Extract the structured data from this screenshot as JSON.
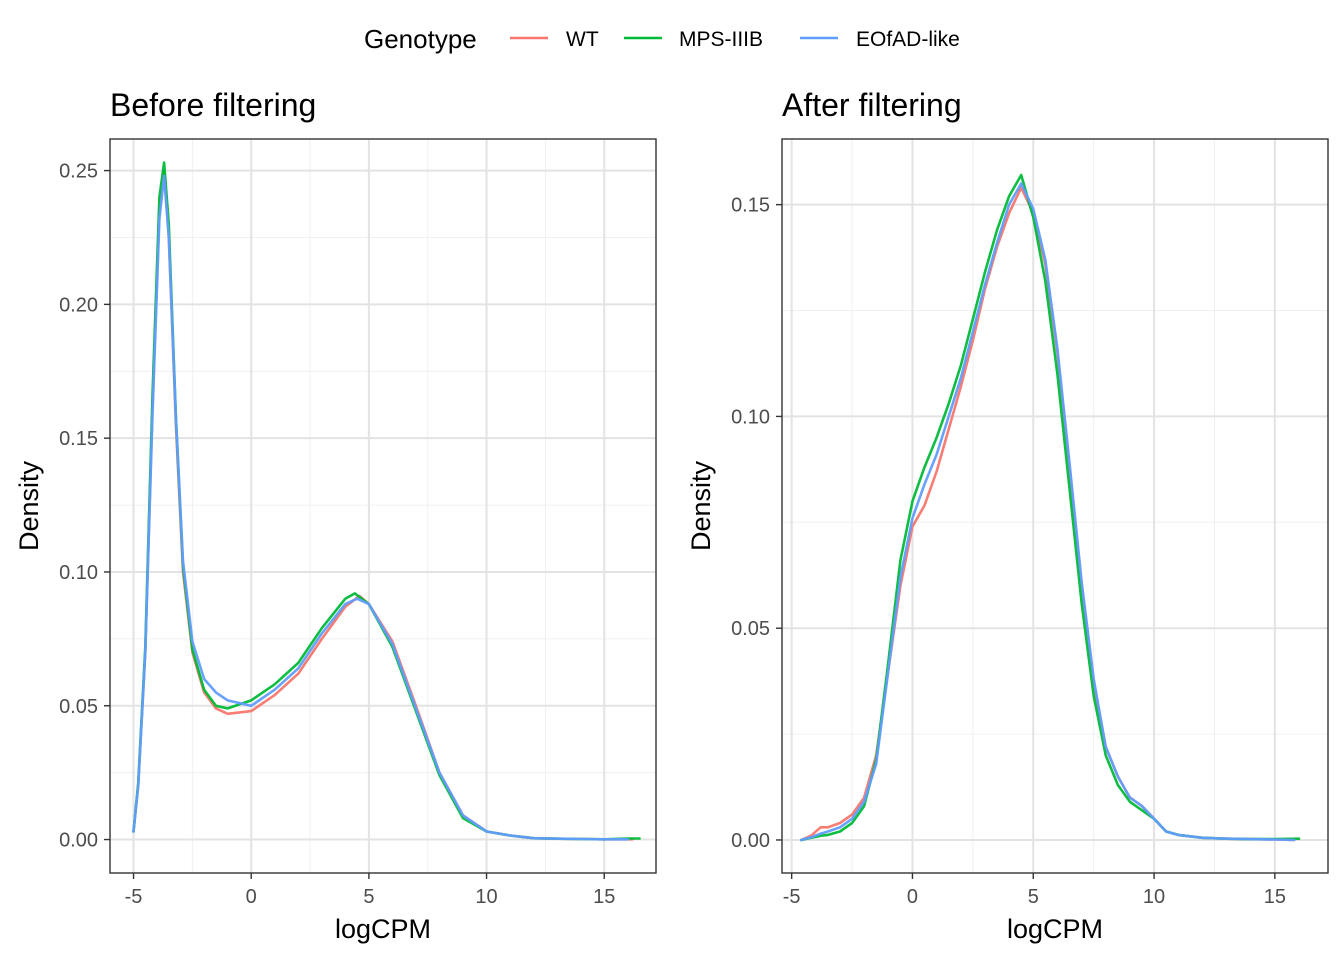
{
  "legend": {
    "title": "Genotype",
    "items": [
      {
        "label": "WT",
        "color": "#F8766D"
      },
      {
        "label": "MPS-IIIB",
        "color": "#00BA38"
      },
      {
        "label": "EOfAD-like",
        "color": "#619CFF"
      }
    ]
  },
  "chart_data": [
    {
      "type": "line",
      "title": "Before filtering",
      "xlabel": "logCPM",
      "ylabel": "Density",
      "xlim": [
        -6.0,
        17.2
      ],
      "ylim": [
        -0.0125,
        0.2618
      ],
      "xticks": [
        -5,
        0,
        5,
        10,
        15
      ],
      "xtick_labels": [
        "-5",
        "0",
        "5",
        "10",
        "15"
      ],
      "yticks": [
        0.0,
        0.05,
        0.1,
        0.15,
        0.2,
        0.25
      ],
      "ytick_labels": [
        "0.00",
        "0.05",
        "0.10",
        "0.15",
        "0.20",
        "0.25"
      ],
      "grid": true,
      "series": [
        {
          "name": "WT",
          "x": [
            -5.0,
            -4.8,
            -4.5,
            -4.2,
            -3.9,
            -3.7,
            -3.5,
            -3.2,
            -2.9,
            -2.5,
            -2.0,
            -1.5,
            -1.0,
            0.0,
            1.0,
            2.0,
            3.0,
            4.0,
            4.6,
            5.0,
            6.0,
            7.0,
            8.0,
            9.0,
            10.0,
            11.0,
            12.0,
            13.0,
            14.0,
            15.0,
            16.0,
            16.2
          ],
          "y": [
            0.003,
            0.02,
            0.07,
            0.16,
            0.235,
            0.25,
            0.225,
            0.155,
            0.1,
            0.07,
            0.055,
            0.049,
            0.047,
            0.048,
            0.054,
            0.062,
            0.075,
            0.087,
            0.091,
            0.088,
            0.074,
            0.05,
            0.025,
            0.009,
            0.003,
            0.0015,
            0.0005,
            0.0003,
            0.0002,
            0.0001,
            0.0001,
            0.0001
          ]
        },
        {
          "name": "MPS-IIIB",
          "x": [
            -5.0,
            -4.8,
            -4.5,
            -4.2,
            -3.9,
            -3.7,
            -3.5,
            -3.2,
            -2.9,
            -2.5,
            -2.0,
            -1.5,
            -1.0,
            0.0,
            1.0,
            2.0,
            3.0,
            4.0,
            4.4,
            5.0,
            6.0,
            7.0,
            8.0,
            9.0,
            10.0,
            11.0,
            12.0,
            13.0,
            14.0,
            15.0,
            16.0,
            16.5
          ],
          "y": [
            0.003,
            0.021,
            0.072,
            0.165,
            0.24,
            0.253,
            0.23,
            0.158,
            0.102,
            0.071,
            0.056,
            0.05,
            0.049,
            0.052,
            0.058,
            0.066,
            0.079,
            0.09,
            0.092,
            0.088,
            0.072,
            0.048,
            0.024,
            0.008,
            0.003,
            0.0015,
            0.0005,
            0.0003,
            0.0002,
            0.0001,
            0.0004,
            0.0004
          ]
        },
        {
          "name": "EOfAD-like",
          "x": [
            -5.0,
            -4.8,
            -4.5,
            -4.2,
            -3.9,
            -3.7,
            -3.5,
            -3.2,
            -2.9,
            -2.5,
            -2.0,
            -1.5,
            -1.0,
            0.0,
            1.0,
            2.0,
            3.0,
            4.0,
            4.5,
            5.0,
            6.0,
            7.0,
            8.0,
            9.0,
            10.0,
            11.0,
            12.0,
            13.0,
            14.0,
            15.0,
            16.0
          ],
          "y": [
            0.003,
            0.02,
            0.07,
            0.158,
            0.232,
            0.248,
            0.225,
            0.158,
            0.104,
            0.074,
            0.06,
            0.055,
            0.052,
            0.05,
            0.056,
            0.064,
            0.077,
            0.088,
            0.09,
            0.088,
            0.073,
            0.049,
            0.025,
            0.009,
            0.003,
            0.0015,
            0.0005,
            0.0003,
            0.0002,
            0.0001,
            0.0001
          ]
        }
      ]
    },
    {
      "type": "line",
      "title": "After filtering",
      "xlabel": "logCPM",
      "ylabel": "Density",
      "xlim": [
        -5.4,
        17.2
      ],
      "ylim": [
        -0.0078,
        0.1655
      ],
      "xticks": [
        -5,
        0,
        5,
        10,
        15
      ],
      "xtick_labels": [
        "-5",
        "0",
        "5",
        "10",
        "15"
      ],
      "yticks": [
        0.0,
        0.05,
        0.1,
        0.15
      ],
      "ytick_labels": [
        "0.00",
        "0.05",
        "0.10",
        "0.15"
      ],
      "grid": true,
      "series": [
        {
          "name": "WT",
          "x": [
            -4.6,
            -4.2,
            -3.8,
            -3.5,
            -3.0,
            -2.5,
            -2.0,
            -1.5,
            -1.0,
            -0.5,
            0.0,
            0.5,
            1.0,
            1.5,
            2.0,
            2.5,
            3.0,
            3.5,
            4.0,
            4.5,
            5.0,
            5.5,
            6.0,
            6.5,
            7.0,
            7.5,
            8.0,
            8.5,
            9.0,
            9.5,
            10.0,
            10.5,
            11.0,
            12.0,
            13.0,
            14.0,
            15.0,
            15.8
          ],
          "y": [
            0.0,
            0.001,
            0.003,
            0.003,
            0.004,
            0.006,
            0.01,
            0.02,
            0.04,
            0.06,
            0.074,
            0.079,
            0.087,
            0.097,
            0.107,
            0.118,
            0.13,
            0.14,
            0.148,
            0.154,
            0.148,
            0.136,
            0.115,
            0.088,
            0.06,
            0.037,
            0.022,
            0.015,
            0.01,
            0.008,
            0.005,
            0.002,
            0.0012,
            0.0005,
            0.0003,
            0.0002,
            0.0001,
            0.0
          ]
        },
        {
          "name": "MPS-IIIB",
          "x": [
            -4.6,
            -4.2,
            -3.8,
            -3.5,
            -3.0,
            -2.5,
            -2.0,
            -1.5,
            -1.0,
            -0.5,
            0.0,
            0.5,
            1.0,
            1.5,
            2.0,
            2.5,
            3.0,
            3.5,
            4.0,
            4.5,
            5.0,
            5.5,
            6.0,
            6.5,
            7.0,
            7.5,
            8.0,
            8.5,
            9.0,
            9.5,
            10.0,
            10.5,
            11.0,
            12.0,
            13.0,
            14.0,
            15.0,
            16.0
          ],
          "y": [
            0.0,
            0.0005,
            0.001,
            0.0012,
            0.002,
            0.004,
            0.008,
            0.019,
            0.042,
            0.066,
            0.08,
            0.088,
            0.095,
            0.103,
            0.112,
            0.123,
            0.134,
            0.144,
            0.152,
            0.157,
            0.147,
            0.132,
            0.11,
            0.083,
            0.056,
            0.034,
            0.02,
            0.013,
            0.009,
            0.007,
            0.005,
            0.002,
            0.0012,
            0.0005,
            0.0003,
            0.0002,
            0.0002,
            0.0003
          ]
        },
        {
          "name": "EOfAD-like",
          "x": [
            -4.6,
            -4.2,
            -3.8,
            -3.5,
            -3.0,
            -2.5,
            -2.0,
            -1.5,
            -1.0,
            -0.5,
            0.0,
            0.5,
            1.0,
            1.5,
            2.0,
            2.5,
            3.0,
            3.5,
            4.0,
            4.5,
            5.0,
            5.5,
            6.0,
            6.5,
            7.0,
            7.5,
            8.0,
            8.5,
            9.0,
            9.5,
            10.0,
            10.5,
            11.0,
            12.0,
            13.0,
            14.0,
            15.0,
            15.8
          ],
          "y": [
            0.0,
            0.0006,
            0.0015,
            0.002,
            0.003,
            0.005,
            0.009,
            0.018,
            0.04,
            0.062,
            0.076,
            0.084,
            0.091,
            0.1,
            0.109,
            0.12,
            0.131,
            0.141,
            0.15,
            0.155,
            0.149,
            0.137,
            0.116,
            0.089,
            0.061,
            0.038,
            0.022,
            0.015,
            0.01,
            0.008,
            0.005,
            0.002,
            0.0012,
            0.0005,
            0.0003,
            0.0002,
            0.0001,
            0.0
          ]
        }
      ]
    }
  ]
}
